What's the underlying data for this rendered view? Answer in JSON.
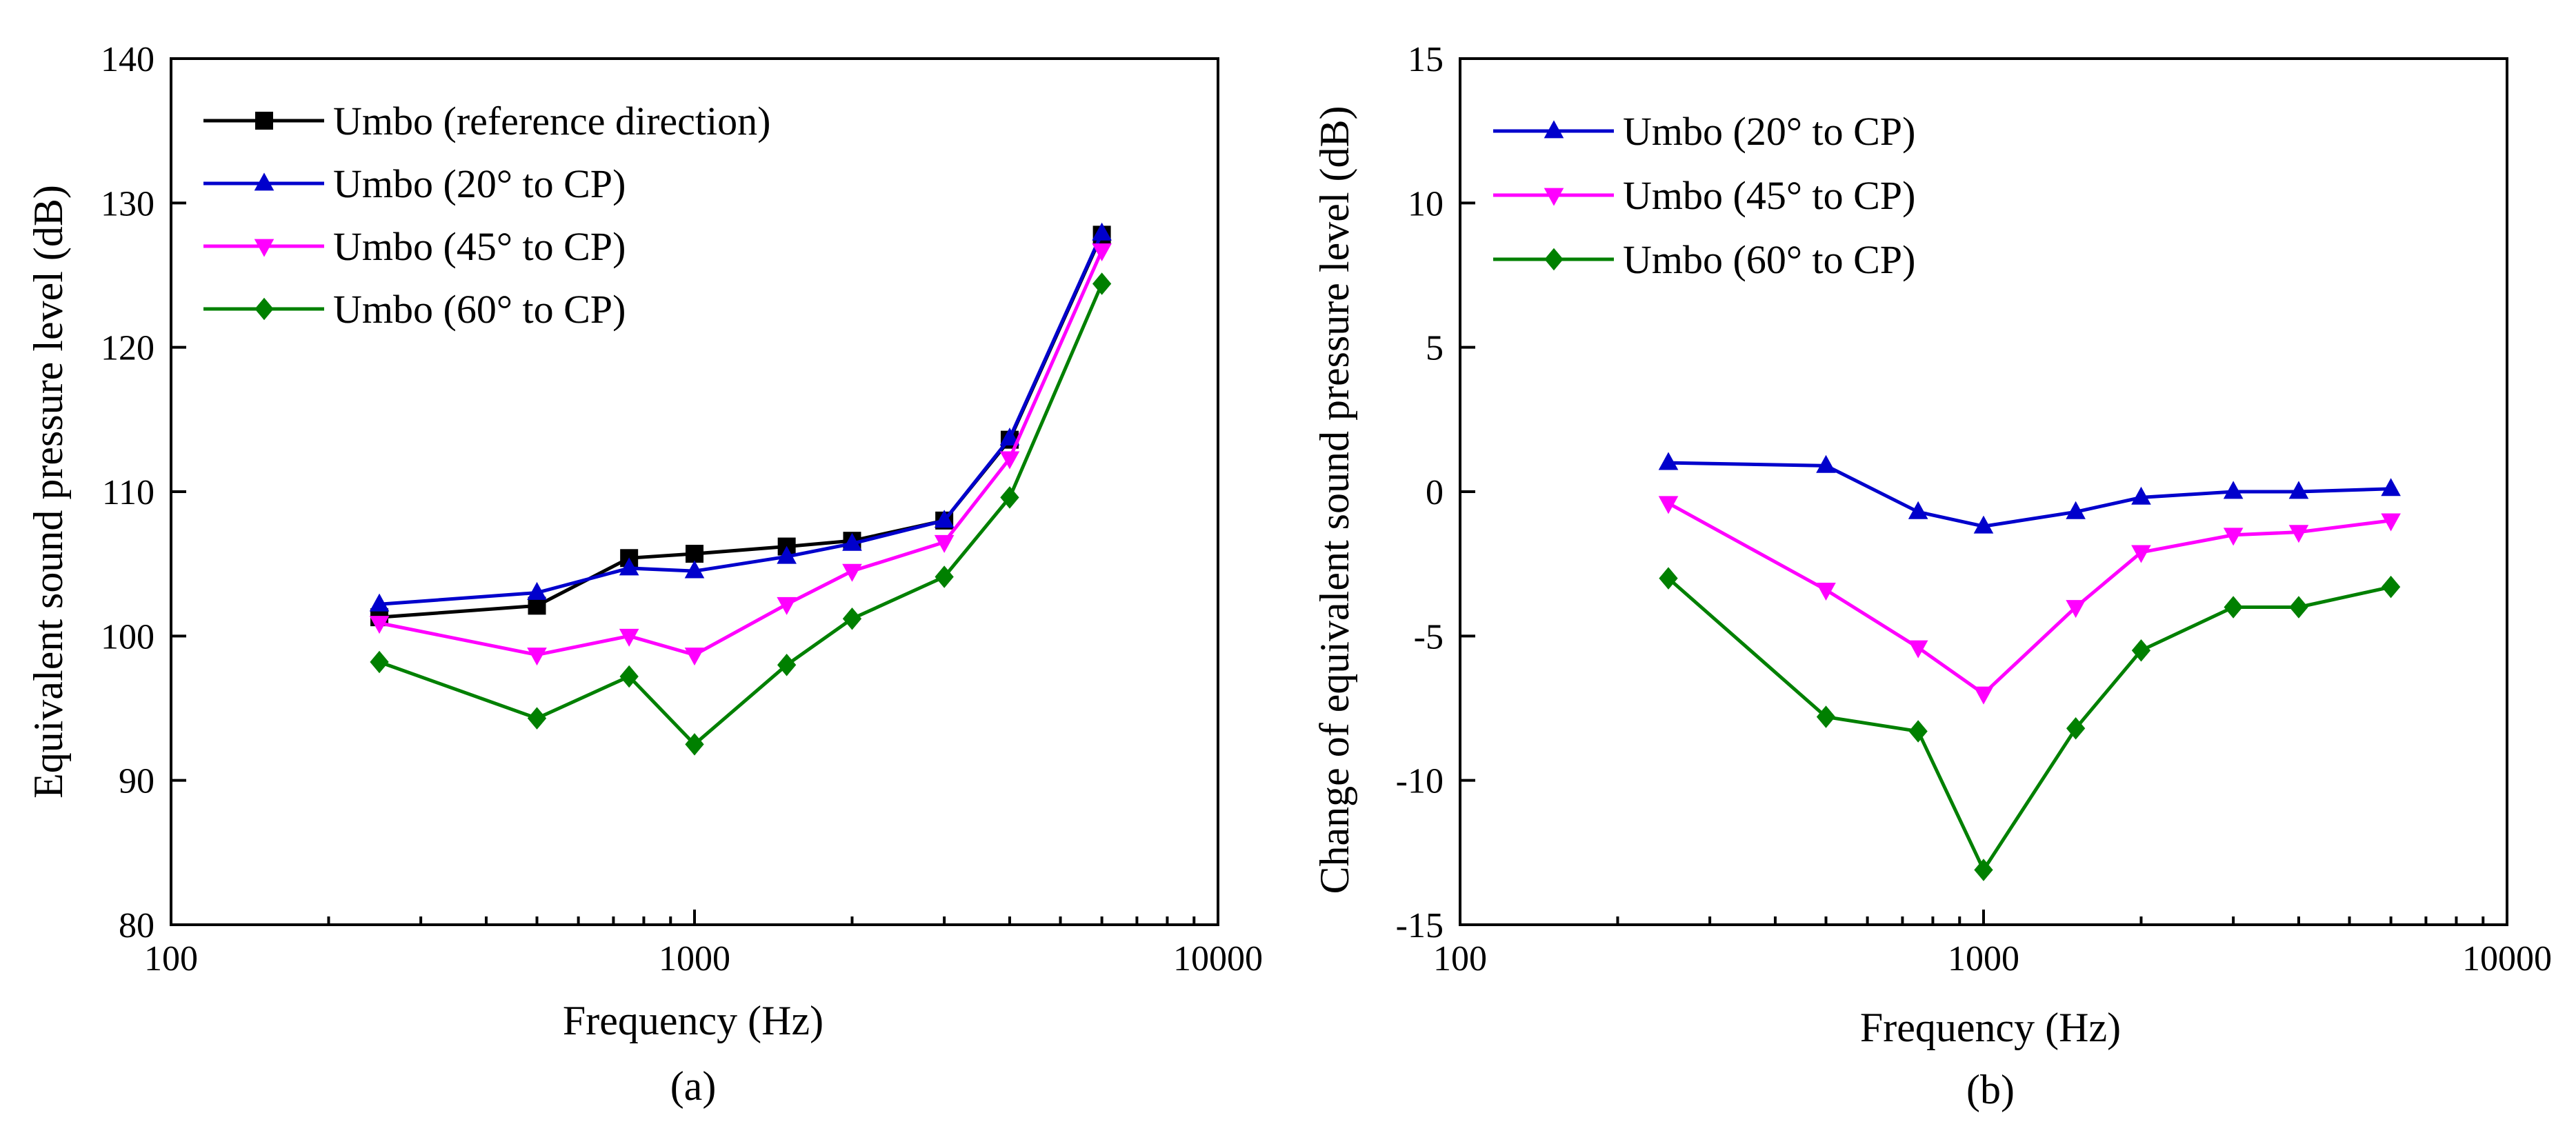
{
  "figure": {
    "charts": [
      {
        "id": "a",
        "caption": "(a)"
      },
      {
        "id": "b",
        "caption": "(b)"
      }
    ]
  },
  "chart_data": [
    {
      "type": "line",
      "title": "",
      "xlabel": "Frequency (Hz)",
      "ylabel": "Equivalent sound pressure level (dB)",
      "x_scale": "log",
      "xlim": [
        100,
        10000
      ],
      "ylim": [
        80,
        140
      ],
      "x_ticks": [
        100,
        1000,
        10000
      ],
      "x_tick_labels": [
        "100",
        "1000",
        "10000"
      ],
      "y_ticks": [
        80,
        90,
        100,
        110,
        120,
        130,
        140
      ],
      "y_tick_labels": [
        "80",
        "90",
        "100",
        "110",
        "120",
        "130",
        "140"
      ],
      "grid": false,
      "legend_position": "top-left",
      "x": [
        250,
        500,
        750,
        1000,
        1500,
        2000,
        3000,
        4000,
        6000
      ],
      "series": [
        {
          "name": "Umbo (reference direction)",
          "color": "#000000",
          "marker": "square",
          "values": [
            101.3,
            102.1,
            105.4,
            105.7,
            106.2,
            106.6,
            108.0,
            113.6,
            127.8
          ]
        },
        {
          "name": "Umbo (20° to CP)",
          "color": "#0000cc",
          "marker": "triangle-up",
          "values": [
            102.2,
            103.0,
            104.7,
            104.5,
            105.5,
            106.4,
            108.0,
            113.7,
            127.9
          ]
        },
        {
          "name": "Umbo (45° to CP)",
          "color": "#ff00ff",
          "marker": "triangle-down",
          "values": [
            100.9,
            98.7,
            100.0,
            98.7,
            102.2,
            104.5,
            106.5,
            112.3,
            126.7
          ]
        },
        {
          "name": "Umbo (60° to CP)",
          "color": "#008000",
          "marker": "diamond",
          "values": [
            98.2,
            94.3,
            97.2,
            92.5,
            98.0,
            101.2,
            104.1,
            109.6,
            124.4
          ]
        }
      ]
    },
    {
      "type": "line",
      "title": "",
      "xlabel": "Frequency (Hz)",
      "ylabel": "Change of equivalent sound pressure level (dB)",
      "x_scale": "log",
      "xlim": [
        100,
        10000
      ],
      "ylim": [
        -15,
        15
      ],
      "x_ticks": [
        100,
        1000,
        10000
      ],
      "x_tick_labels": [
        "100",
        "1000",
        "10000"
      ],
      "y_ticks": [
        -15,
        -10,
        -5,
        0,
        5,
        10,
        15
      ],
      "y_tick_labels": [
        "-15",
        "-10",
        "-5",
        "0",
        "5",
        "10",
        "15"
      ],
      "grid": false,
      "legend_position": "top-left",
      "x": [
        250,
        500,
        750,
        1000,
        1500,
        2000,
        3000,
        4000,
        6000
      ],
      "series": [
        {
          "name": "Umbo (20° to CP)",
          "color": "#0000cc",
          "marker": "triangle-up",
          "values": [
            1.0,
            0.9,
            -0.7,
            -1.2,
            -0.7,
            -0.2,
            0.0,
            0.0,
            0.1
          ]
        },
        {
          "name": "Umbo (45° to CP)",
          "color": "#ff00ff",
          "marker": "triangle-down",
          "values": [
            -0.4,
            -3.4,
            -5.4,
            -7.0,
            -4.0,
            -2.1,
            -1.5,
            -1.4,
            -1.0
          ]
        },
        {
          "name": "Umbo (60° to CP)",
          "color": "#008000",
          "marker": "diamond",
          "values": [
            -3.0,
            -7.8,
            -8.3,
            -13.1,
            -8.2,
            -5.5,
            -4.0,
            -4.0,
            -3.3
          ]
        }
      ]
    }
  ]
}
